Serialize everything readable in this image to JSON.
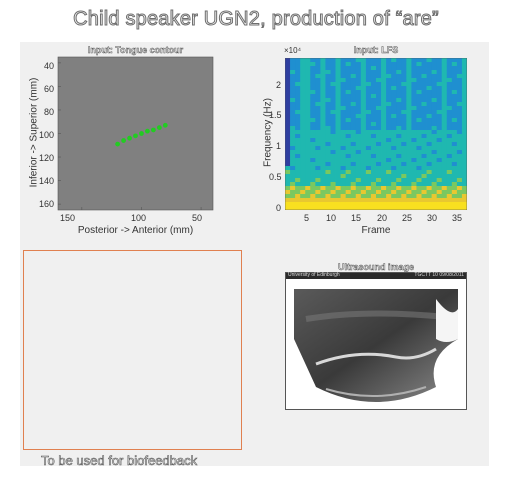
{
  "page_title": "Child speaker UGN2, production of “are”",
  "tongue_plot": {
    "title": "Input: Tongue contour",
    "xlabel": "Posterior -> Anterior (mm)",
    "ylabel": "Inferior -> Superior (mm)",
    "xticks": [
      "150",
      "100",
      "50"
    ],
    "yticks": [
      "40",
      "60",
      "80",
      "100",
      "120",
      "140",
      "160"
    ],
    "background_color": "#808080",
    "contour_color": "#22cc22",
    "chart_data": {
      "type": "scatter",
      "title": "Input: Tongue contour",
      "xlabel": "Posterior -> Anterior (mm)",
      "ylabel": "Inferior -> Superior (mm)",
      "xlim": [
        170,
        40
      ],
      "ylim": [
        165,
        35
      ],
      "x": [
        120,
        115,
        110,
        105,
        100,
        95,
        90,
        85,
        80
      ],
      "y": [
        109,
        106,
        104,
        102,
        100,
        98,
        97,
        95,
        93
      ]
    }
  },
  "lfs_plot": {
    "title": "Input: LFS",
    "xlabel": "Frame",
    "ylabel": "Frequency (Hz)",
    "multiplier": "×10⁴",
    "xticks": [
      "5",
      "10",
      "15",
      "20",
      "25",
      "30",
      "35"
    ],
    "yticks": [
      "2",
      "1.5",
      "1",
      "0.5",
      "0"
    ],
    "chart_data": {
      "type": "heatmap",
      "title": "Input: LFS",
      "xlabel": "Frame",
      "ylabel": "Frequency (Hz)",
      "xlim": [
        1,
        37
      ],
      "ylim": [
        0,
        24000
      ],
      "colors": [
        "#2f3fa0",
        "#1f8fd0",
        "#1fb8b0",
        "#7ac860",
        "#e8c830",
        "#f8e020"
      ]
    }
  },
  "ultrasound": {
    "title": "Ultrasound image",
    "header_left": "University of Edinburgh",
    "header_right": "TGCTT 10 09/08/2011"
  },
  "feedback_caption": "To be used for biofeedback"
}
